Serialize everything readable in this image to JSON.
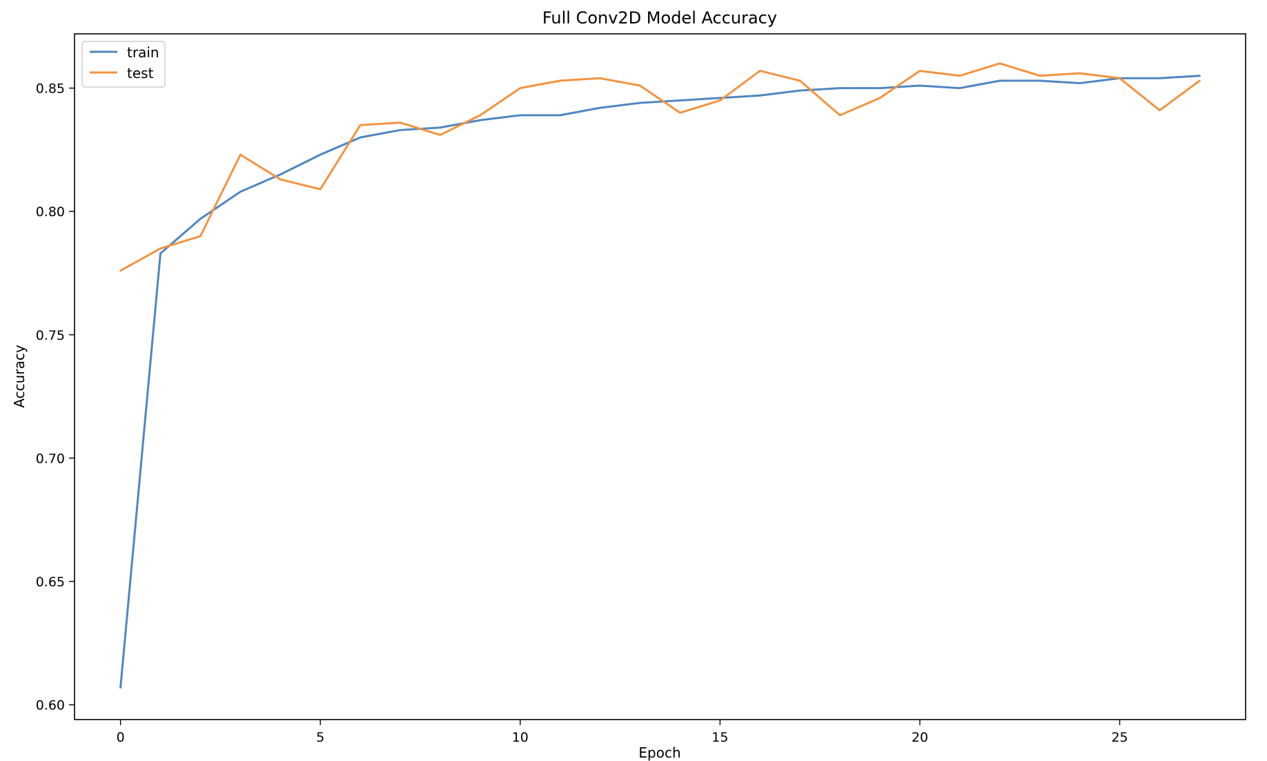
{
  "chart_data": {
    "type": "line",
    "title": "Full Conv2D Model Accuracy",
    "xlabel": "Epoch",
    "ylabel": "Accuracy",
    "xlim": [
      -1.15,
      28.15
    ],
    "ylim": [
      0.594,
      0.872
    ],
    "xticks": [
      0,
      5,
      10,
      15,
      20,
      25
    ],
    "yticks": [
      0.6,
      0.65,
      0.7,
      0.75,
      0.8,
      0.85
    ],
    "ytick_labels": [
      "0.60",
      "0.65",
      "0.70",
      "0.75",
      "0.80",
      "0.85"
    ],
    "grid": false,
    "legend_position": "upper-left",
    "x": [
      0,
      1,
      2,
      3,
      4,
      5,
      6,
      7,
      8,
      9,
      10,
      11,
      12,
      13,
      14,
      15,
      16,
      17,
      18,
      19,
      20,
      21,
      22,
      23,
      24,
      25,
      26,
      27
    ],
    "series": [
      {
        "name": "train",
        "color": "#4f86c1",
        "values": [
          0.607,
          0.783,
          0.797,
          0.808,
          0.815,
          0.823,
          0.83,
          0.833,
          0.834,
          0.837,
          0.839,
          0.839,
          0.842,
          0.844,
          0.845,
          0.846,
          0.847,
          0.849,
          0.85,
          0.85,
          0.851,
          0.85,
          0.853,
          0.853,
          0.852,
          0.854,
          0.854,
          0.855
        ]
      },
      {
        "name": "test",
        "color": "#f39340",
        "values": [
          0.776,
          0.785,
          0.79,
          0.823,
          0.813,
          0.809,
          0.835,
          0.836,
          0.831,
          0.839,
          0.85,
          0.853,
          0.854,
          0.851,
          0.84,
          0.845,
          0.857,
          0.853,
          0.839,
          0.846,
          0.857,
          0.855,
          0.86,
          0.855,
          0.856,
          0.854,
          0.841,
          0.853
        ]
      }
    ]
  }
}
